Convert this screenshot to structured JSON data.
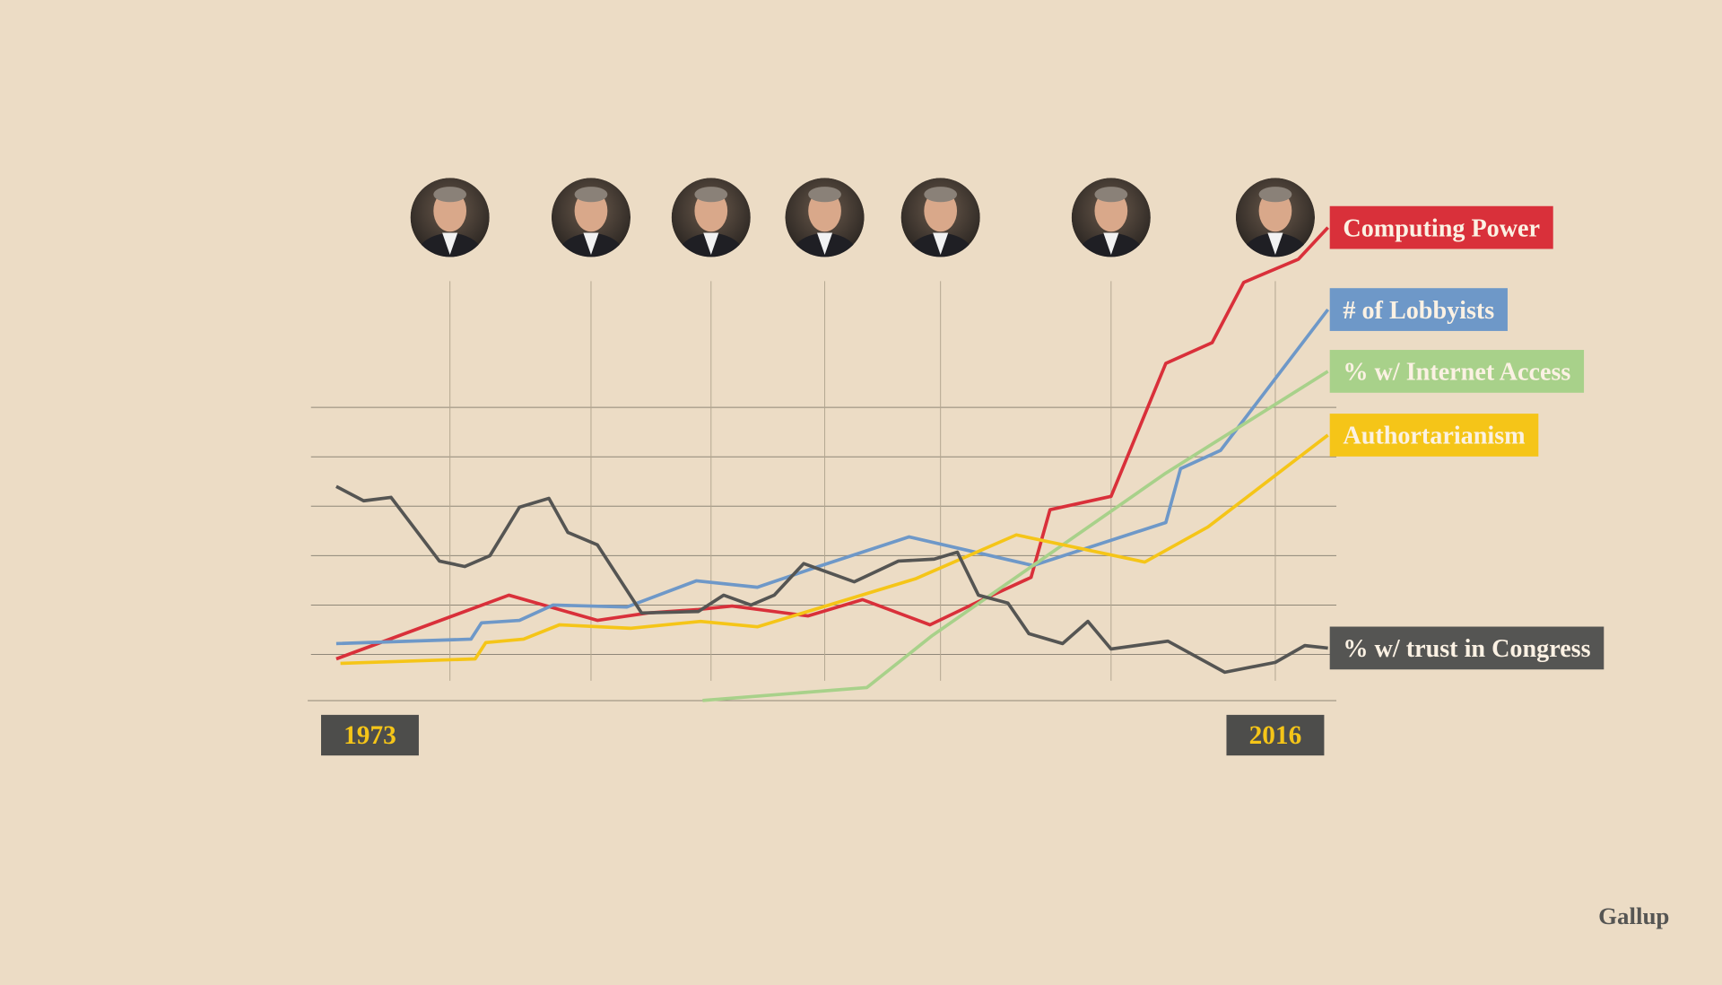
{
  "chart_data": {
    "type": "line",
    "source": "Gallup",
    "xlim": [
      1970.2,
      2018.9
    ],
    "ylim": [
      0,
      100
    ],
    "xticks": [
      1973,
      2016
    ],
    "xgrid": [
      1976.8,
      1983.5,
      1989.2,
      1994.6,
      2000.1,
      2008.2,
      2016
    ],
    "yticks": [
      10,
      20,
      30,
      40,
      50,
      60
    ],
    "grid": true,
    "series": [
      {
        "name": "Computing Power",
        "color": "#d9303a",
        "x": [
          1971.4,
          1979.6,
          1983.8,
          1986.2,
          1988.6,
          1990.2,
          1993.8,
          1996.4,
          1999.6,
          2001.9,
          2004.4,
          2005.3,
          2008.2,
          2010.8,
          2013.0,
          2014.5,
          2017.1,
          2018.5
        ],
        "values": [
          9.1,
          22.0,
          16.9,
          18.4,
          19.1,
          19.8,
          17.8,
          21.1,
          16.0,
          20.7,
          25.6,
          39.3,
          42.0,
          68.9,
          73.1,
          85.3,
          90.0,
          96.4
        ]
      },
      {
        "name": "# of Lobbyists",
        "color": "#6e98c8",
        "x": [
          1971.4,
          1977.8,
          1978.3,
          1980.1,
          1981.7,
          1985.2,
          1988.5,
          1991.4,
          1994.3,
          1998.6,
          2004.5,
          2010.8,
          2011.5,
          2013.4,
          2018.5
        ],
        "values": [
          12.2,
          13.1,
          16.4,
          16.9,
          20.0,
          19.6,
          24.9,
          23.6,
          27.8,
          33.8,
          28.0,
          36.7,
          47.6,
          51.3,
          79.8
        ]
      },
      {
        "name": "% w/ Internet Access",
        "color": "#a8d18a",
        "x": [
          1988.8,
          1996.6,
          1999.7,
          2010.8,
          2018.5
        ],
        "values": [
          0.7,
          3.3,
          13.8,
          46.7,
          67.3
        ]
      },
      {
        "name": "Authortarianism",
        "color": "#f5c518",
        "x": [
          1971.6,
          1978.0,
          1978.5,
          1980.3,
          1982.0,
          1985.4,
          1988.7,
          1991.4,
          1998.9,
          2003.7,
          2009.8,
          2012.8,
          2018.5
        ],
        "values": [
          8.2,
          9.1,
          12.4,
          13.1,
          16.0,
          15.3,
          16.7,
          15.6,
          25.3,
          34.2,
          28.7,
          35.8,
          54.4
        ]
      },
      {
        "name": "% w/ trust in Congress",
        "color": "#555553",
        "x": [
          1971.4,
          1972.7,
          1974.0,
          1976.3,
          1977.5,
          1978.7,
          1980.1,
          1981.5,
          1982.4,
          1983.8,
          1985.9,
          1988.6,
          1989.8,
          1991.1,
          1992.2,
          1993.6,
          1996.0,
          1998.1,
          1999.8,
          2000.9,
          2001.9,
          2003.3,
          2004.3,
          2005.9,
          2007.1,
          2008.2,
          2010.9,
          2013.6,
          2016.0,
          2017.4,
          2018.5
        ],
        "values": [
          44.0,
          41.1,
          41.8,
          28.9,
          27.8,
          30.0,
          39.8,
          41.6,
          34.7,
          32.2,
          18.4,
          18.7,
          22.0,
          20.0,
          22.0,
          28.4,
          24.7,
          28.9,
          29.3,
          30.7,
          22.0,
          20.4,
          14.2,
          12.2,
          16.7,
          11.1,
          12.7,
          6.4,
          8.4,
          11.8,
          11.3
        ]
      }
    ]
  }
}
